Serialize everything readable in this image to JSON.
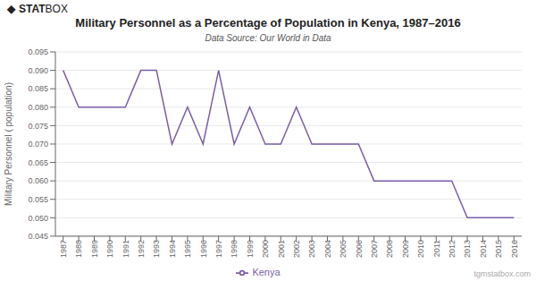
{
  "chart_data": {
    "type": "line",
    "title": "Military Personnel as a Percentage of Population in Kenya, 1987–2016",
    "subtitle": "Data Source: Our World in Data",
    "ylabel": "Military Personnel ( population)",
    "annotations": [
      "◆",
      "STAT",
      "BOX",
      "tgmstatbox.com"
    ],
    "x": [
      1987,
      1988,
      1989,
      1990,
      1991,
      1992,
      1993,
      1994,
      1995,
      1996,
      1997,
      1998,
      1999,
      2000,
      2001,
      2002,
      2003,
      2004,
      2005,
      2006,
      2007,
      2008,
      2009,
      2010,
      2011,
      2012,
      2013,
      2014,
      2015,
      2016
    ],
    "series": [
      {
        "name": "Kenya",
        "color": "#7b5ea7",
        "values": [
          0.09,
          0.08,
          0.08,
          0.08,
          0.08,
          0.09,
          0.09,
          0.07,
          0.08,
          0.07,
          0.09,
          0.07,
          0.08,
          0.07,
          0.07,
          0.08,
          0.07,
          0.07,
          0.07,
          0.07,
          0.06,
          0.06,
          0.06,
          0.06,
          0.06,
          0.06,
          0.05,
          0.05,
          0.05,
          0.05
        ]
      }
    ],
    "xlim": [
      1986.5,
      2016.5
    ],
    "xticks": [
      1987,
      1988,
      1989,
      1990,
      1991,
      1992,
      1993,
      1994,
      1995,
      1996,
      1997,
      1998,
      1999,
      2000,
      2001,
      2002,
      2003,
      2004,
      2005,
      2006,
      2007,
      2008,
      2009,
      2010,
      2011,
      2012,
      2013,
      2014,
      2015,
      2016
    ],
    "ylim": [
      0.045,
      0.095
    ],
    "yticks": [
      0.045,
      {
        "value": 0.05,
        "label": "0.050"
      },
      0.055,
      {
        "value": 0.06,
        "label": "0.060"
      },
      0.065,
      {
        "value": 0.07,
        "label": "0.070"
      },
      0.075,
      {
        "value": 0.08,
        "label": "0.080"
      },
      0.085,
      {
        "value": 0.09,
        "label": "0.090"
      },
      0.095
    ],
    "grid": "y",
    "legend": "bottom"
  }
}
